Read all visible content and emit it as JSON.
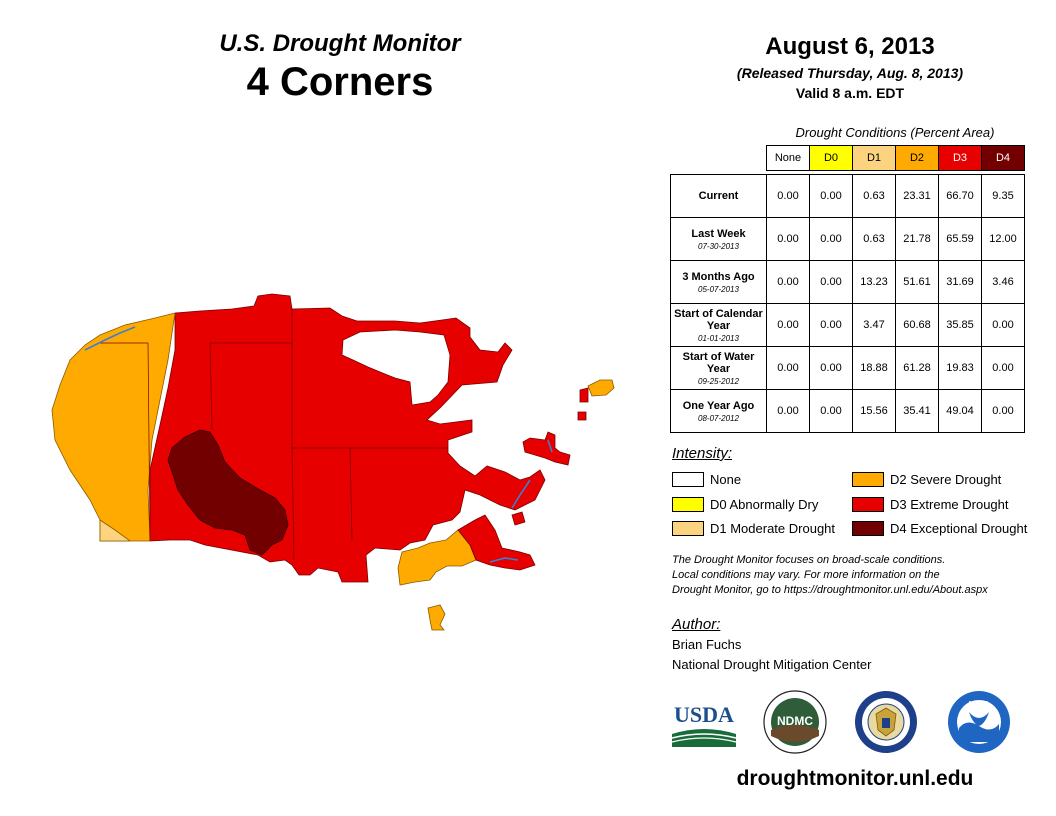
{
  "header": {
    "subtitle": "U.S. Drought Monitor",
    "region": "4 Corners",
    "date": "August 6, 2013",
    "released": "(Released Thursday, Aug. 8, 2013)",
    "valid": "Valid 8 a.m. EDT"
  },
  "conditions": {
    "caption": "Drought Conditions (Percent Area)",
    "columns": [
      "None",
      "D0",
      "D1",
      "D2",
      "D3",
      "D4"
    ],
    "rows": [
      {
        "label": "Current",
        "date": "",
        "values": [
          "0.00",
          "0.00",
          "0.63",
          "23.31",
          "66.70",
          "9.35"
        ]
      },
      {
        "label": "Last Week",
        "date": "07-30-2013",
        "values": [
          "0.00",
          "0.00",
          "0.63",
          "21.78",
          "65.59",
          "12.00"
        ]
      },
      {
        "label": "3 Months Ago",
        "date": "05-07-2013",
        "values": [
          "0.00",
          "0.00",
          "13.23",
          "51.61",
          "31.69",
          "3.46"
        ]
      },
      {
        "label": "Start of Calendar Year",
        "date": "01-01-2013",
        "values": [
          "0.00",
          "0.00",
          "3.47",
          "60.68",
          "35.85",
          "0.00"
        ]
      },
      {
        "label": "Start of Water Year",
        "date": "09-25-2012",
        "values": [
          "0.00",
          "0.00",
          "18.88",
          "61.28",
          "19.83",
          "0.00"
        ]
      },
      {
        "label": "One Year Ago",
        "date": "08-07-2012",
        "values": [
          "0.00",
          "0.00",
          "15.56",
          "35.41",
          "49.04",
          "0.00"
        ]
      }
    ]
  },
  "legend": {
    "title": "Intensity:",
    "items": [
      {
        "label": "None",
        "color": "#ffffff"
      },
      {
        "label": "D0 Abnormally Dry",
        "color": "#ffff00"
      },
      {
        "label": "D1 Moderate Drought",
        "color": "#fcd37f"
      },
      {
        "label": "D2 Severe Drought",
        "color": "#ffaa00"
      },
      {
        "label": "D3 Extreme Drought",
        "color": "#e60000"
      },
      {
        "label": "D4 Exceptional Drought",
        "color": "#730000"
      }
    ]
  },
  "note": {
    "line1": "The Drought Monitor focuses on broad-scale conditions.",
    "line2": "Local conditions may vary. For more information on the",
    "line3": "Drought Monitor, go to https://droughtmonitor.unl.edu/About.aspx"
  },
  "author": {
    "title": "Author:",
    "name": "Brian Fuchs",
    "org": "National Drought Mitigation Center"
  },
  "logos": {
    "usda": "USDA",
    "ndmc": "NDMC",
    "noaa": "NOAA"
  },
  "footer": {
    "url": "droughtmonitor.unl.edu"
  },
  "map_colors": {
    "d1": "#fcd37f",
    "d2": "#ffaa00",
    "d3": "#e60000",
    "d4": "#730000",
    "water": "#3a7fd5"
  }
}
